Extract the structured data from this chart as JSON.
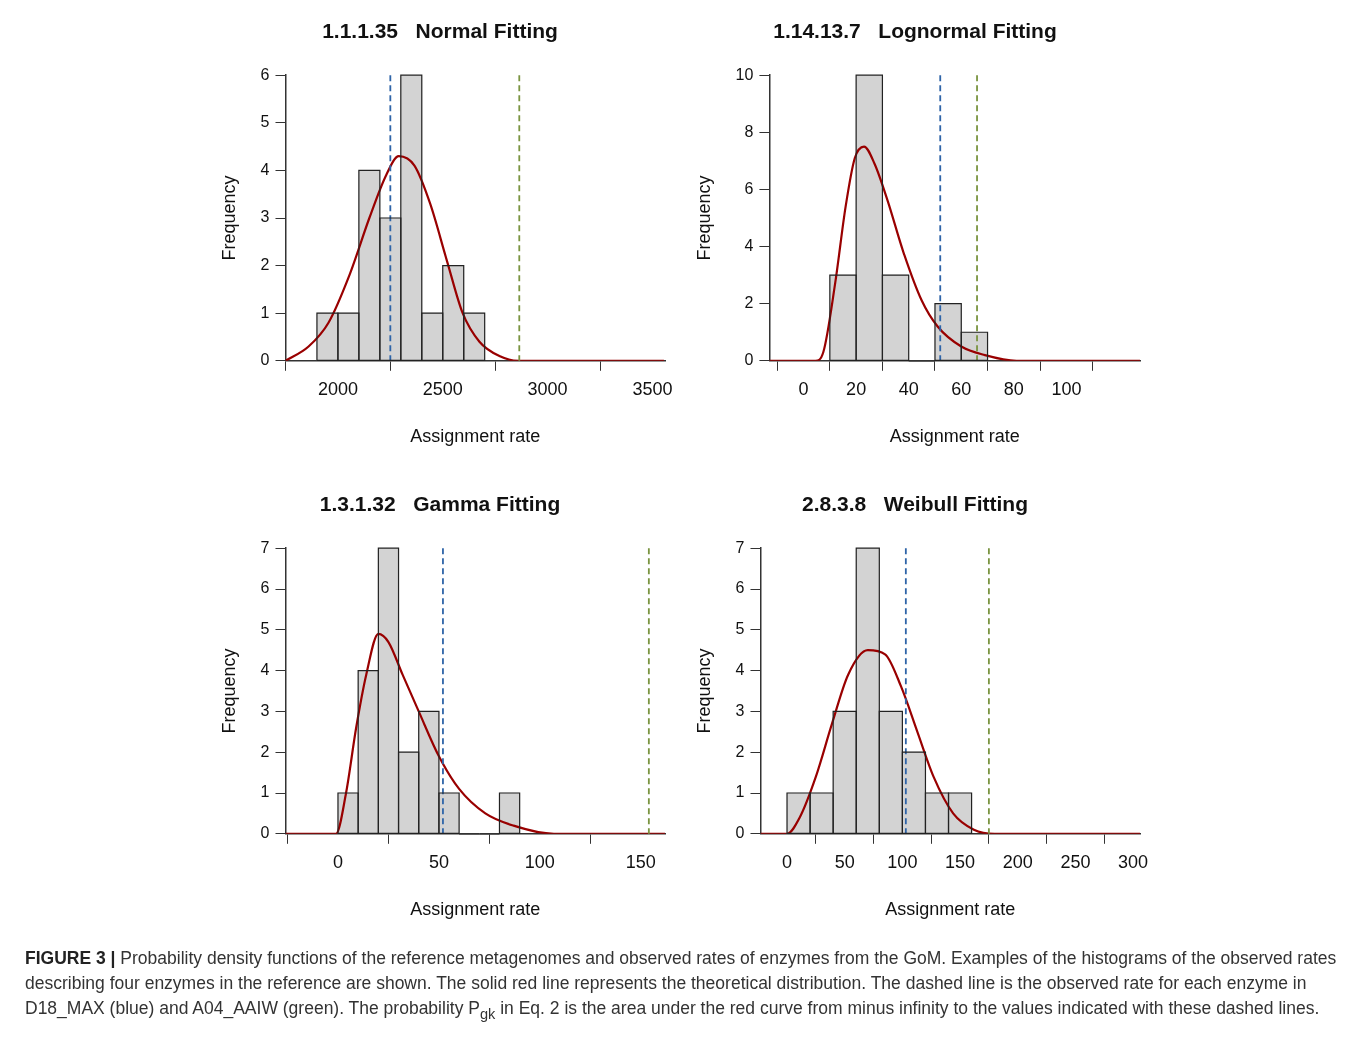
{
  "chart_data": [
    {
      "type": "histogram",
      "title": "1.1.1.35   Normal Fitting",
      "xlabel": "Assignment rate",
      "ylabel": "Frequency",
      "bins": [
        1900,
        2000,
        2100,
        2200,
        2300,
        2400,
        2500,
        2600,
        2700
      ],
      "values": [
        1,
        1,
        4,
        3,
        6,
        1,
        2,
        1
      ],
      "color": "#d3d3d3",
      "xlim": [
        1750,
        3560
      ],
      "xticks": [
        2000,
        2500,
        3000,
        3500
      ],
      "ylim": [
        0,
        6
      ],
      "yticks": [
        0,
        1,
        2,
        3,
        4,
        5,
        6
      ],
      "series": [
        {
          "type": "line",
          "color": "#990000",
          "x": [
            1750,
            1860,
            1955,
            2055,
            2150,
            2230,
            2290,
            2365,
            2440,
            2520,
            2595,
            2675,
            2770,
            2865,
            3120,
            3555
          ],
          "values": [
            0,
            0.3,
            0.8,
            1.8,
            3.0,
            3.9,
            4.3,
            4.1,
            3.3,
            2.1,
            1.0,
            0.4,
            0.1,
            0,
            0,
            0
          ]
        }
      ],
      "ref_lines": [
        {
          "axis": "x",
          "value": 2250,
          "color": "#2e64a8",
          "line_style": "dashed"
        },
        {
          "axis": "x",
          "value": 2865,
          "color": "#7a9440",
          "line_style": "dashed"
        }
      ]
    },
    {
      "type": "histogram",
      "title": "1.14.13.7   Lognormal Fitting",
      "xlabel": "Assignment rate",
      "ylabel": "Frequency",
      "bins": [
        10,
        20,
        30,
        40,
        50,
        60,
        70
      ],
      "values": [
        3,
        10,
        3,
        0,
        2,
        1
      ],
      "color": "#d3d3d3",
      "xlim": [
        -13,
        128
      ],
      "xticks": [
        0,
        20,
        40,
        60,
        80,
        100
      ],
      "ylim": [
        0,
        10
      ],
      "yticks": [
        0,
        2,
        4,
        6,
        8,
        10
      ],
      "series": [
        {
          "type": "line",
          "color": "#990000",
          "x": [
            -13,
            4.5,
            7.5,
            12,
            16,
            19.5,
            23,
            27,
            32,
            38,
            45,
            51,
            60,
            69,
            81,
            128
          ],
          "values": [
            0,
            0,
            0.3,
            2.7,
            5.4,
            7.1,
            7.5,
            6.9,
            5.6,
            3.8,
            2.1,
            1.2,
            0.5,
            0.2,
            0,
            0
          ]
        }
      ],
      "ref_lines": [
        {
          "axis": "x",
          "value": 52,
          "color": "#2e64a8",
          "line_style": "dashed"
        },
        {
          "axis": "x",
          "value": 66,
          "color": "#7a9440",
          "line_style": "dashed"
        }
      ]
    },
    {
      "type": "histogram",
      "title": "1.3.1.32   Gamma Fitting",
      "xlabel": "Assignment rate",
      "ylabel": "Frequency",
      "bins": [
        0,
        10,
        20,
        30,
        40,
        50,
        60,
        70,
        80,
        90
      ],
      "values": [
        1,
        4,
        7,
        2,
        3,
        1,
        0,
        0,
        1
      ],
      "color": "#d3d3d3",
      "xlim": [
        -26,
        162
      ],
      "xticks": [
        0,
        50,
        100,
        150
      ],
      "ylim": [
        0,
        7
      ],
      "yticks": [
        0,
        1,
        2,
        3,
        4,
        5,
        6,
        7
      ],
      "series": [
        {
          "type": "line",
          "color": "#990000",
          "x": [
            -26,
            -1,
            4,
            9,
            14,
            20,
            25,
            32,
            40,
            50,
            60,
            73,
            87,
            107,
            162
          ],
          "values": [
            0,
            0,
            1.0,
            2.6,
            3.9,
            4.9,
            4.7,
            3.9,
            3.0,
            1.9,
            1.1,
            0.5,
            0.2,
            0,
            0
          ]
        }
      ],
      "ref_lines": [
        {
          "axis": "x",
          "value": 52,
          "color": "#2e64a8",
          "line_style": "dashed"
        },
        {
          "axis": "x",
          "value": 154,
          "color": "#7a9440",
          "line_style": "dashed"
        }
      ]
    },
    {
      "type": "histogram",
      "title": "2.8.3.8   Weibull Fitting",
      "xlabel": "Assignment rate",
      "ylabel": "Frequency",
      "bins": [
        0,
        20,
        40,
        60,
        80,
        100,
        120,
        140,
        160
      ],
      "values": [
        1,
        1,
        3,
        7,
        3,
        2,
        1,
        1
      ],
      "color": "#d3d3d3",
      "xlim": [
        -23,
        306
      ],
      "xticks": [
        0,
        50,
        100,
        150,
        200,
        250,
        300
      ],
      "ylim": [
        0,
        7
      ],
      "yticks": [
        0,
        1,
        2,
        3,
        4,
        5,
        6,
        7
      ],
      "series": [
        {
          "type": "line",
          "color": "#990000",
          "x": [
            -23,
            0,
            11,
            25,
            39,
            53,
            70,
            85,
            99,
            113,
            127,
            144,
            162,
            180,
            306
          ],
          "values": [
            0,
            0,
            0.4,
            1.4,
            2.7,
            3.9,
            4.5,
            4.4,
            3.6,
            2.5,
            1.4,
            0.5,
            0.1,
            0,
            0
          ]
        }
      ],
      "ref_lines": [
        {
          "axis": "x",
          "value": 103,
          "color": "#2e64a8",
          "line_style": "dashed"
        },
        {
          "axis": "x",
          "value": 175,
          "color": "#7a9440",
          "line_style": "dashed"
        }
      ]
    },
    {
      "type": "other",
      "annotations": [
        "FIGURE 3 |",
        "Probability density functions of the reference metagenomes and observed rates of enzymes from the GoM. Examples of the histograms of the observed rates describing four enzymes in the reference are shown. The solid red line represents the theoretical distribution. The dashed line is the observed rate for each enzyme in D18_MAX (blue) and A04_AAIW (green). The probability P$_{gk}$ in Eq. 2 is the area under the red curve from minus infinity to the values indicated with these dashed lines."
      ]
    }
  ]
}
